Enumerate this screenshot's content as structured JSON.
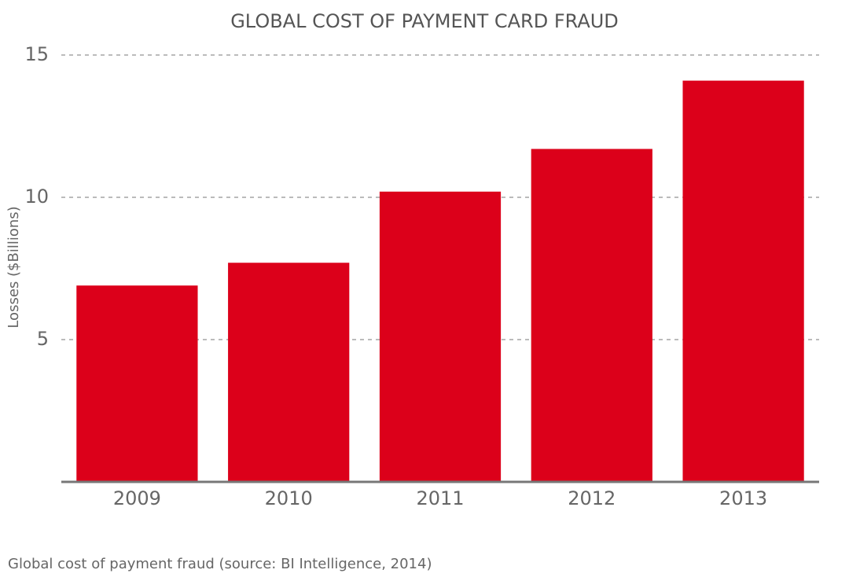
{
  "chart_data": {
    "type": "bar",
    "title": "GLOBAL COST OF PAYMENT CARD FRAUD",
    "y_label": "Losses ($Billions)",
    "caption": "Global cost of payment fraud (source: BI Intelligence, 2014)",
    "categories": [
      "2009",
      "2010",
      "2011",
      "2012",
      "2013"
    ],
    "values": [
      6.9,
      7.7,
      10.2,
      11.7,
      14.1
    ],
    "color": "#dc001a",
    "ylim": [
      0,
      15
    ],
    "yticks": [
      5,
      10,
      15
    ],
    "grid": true
  }
}
